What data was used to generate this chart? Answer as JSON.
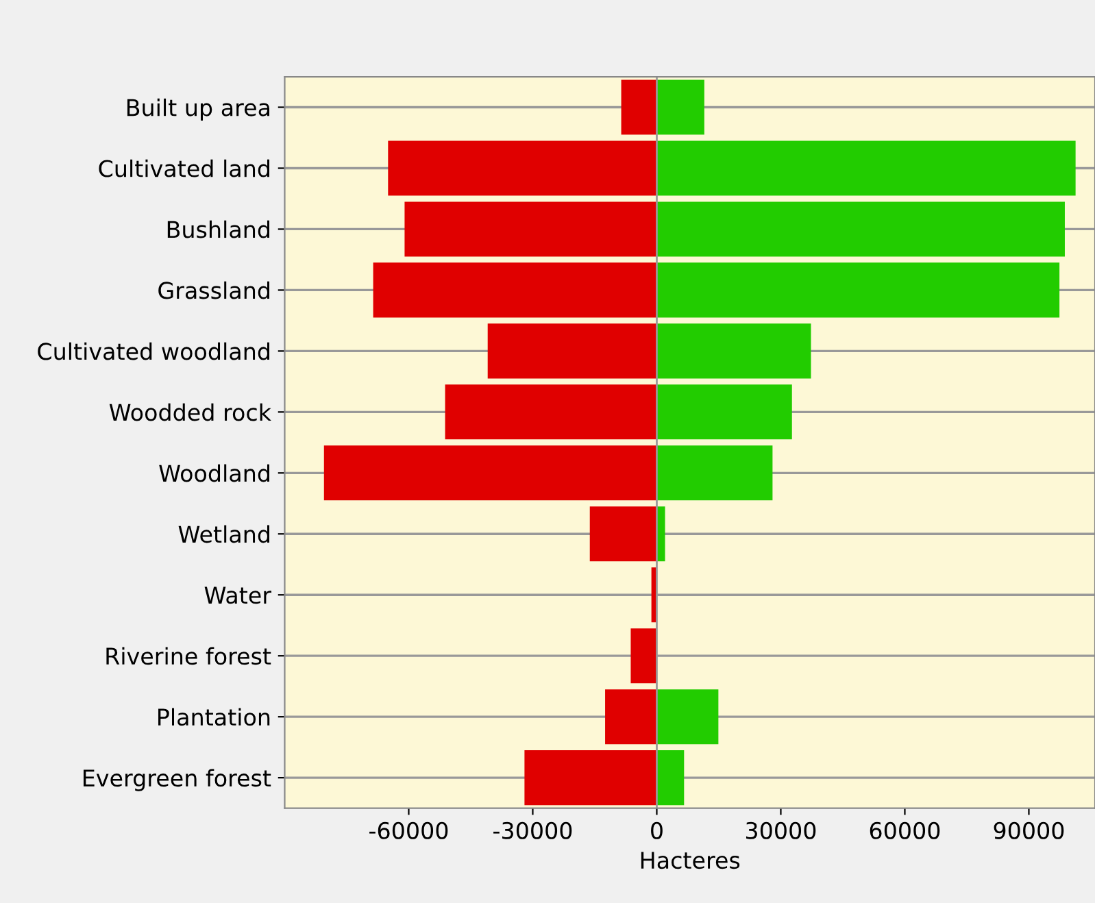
{
  "chart_data": {
    "type": "bar",
    "orientation": "horizontal",
    "xlabel": "Hacteres",
    "categories": [
      "Built up area",
      "Cultivated land",
      "Bushland",
      "Grassland",
      "Cultivated woodland",
      "Woodded rock",
      "Woodland",
      "Wetland",
      "Water",
      "Riverine forest",
      "Plantation",
      "Evergreen forest"
    ],
    "series": [
      {
        "color": "#e00000",
        "values": [
          -8600,
          -65000,
          -61000,
          -68600,
          -40900,
          -51200,
          -80500,
          -16200,
          -1300,
          -6300,
          -12500,
          -32000
        ]
      },
      {
        "color": "#22cc00",
        "values": [
          11500,
          101300,
          98700,
          97400,
          37300,
          32700,
          28000,
          2000,
          0,
          null,
          14900,
          6600
        ]
      }
    ],
    "stacked": true,
    "xlim": [
      -90000,
      106000
    ],
    "xticks": [
      -60000,
      -30000,
      0,
      30000,
      60000,
      90000
    ],
    "grid": "y"
  }
}
